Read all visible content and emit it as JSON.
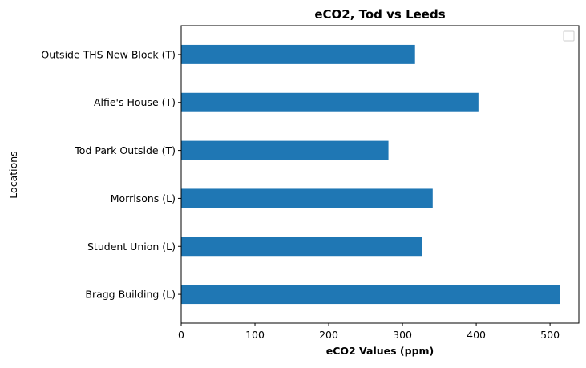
{
  "chart_data": {
    "type": "bar",
    "orientation": "horizontal",
    "title": "eCO2, Tod vs Leeds",
    "xlabel": "eCO2 Values (ppm)",
    "ylabel": "Locations",
    "categories": [
      "Bragg Building (L)",
      "Student Union (L)",
      "Morrisons (L)",
      "Tod Park Outside (T)",
      "Alfie's House (T)",
      "Outside THS New Block (T)"
    ],
    "values": [
      513,
      327,
      341,
      281,
      403,
      317
    ],
    "xlim": [
      0,
      539
    ],
    "xticks": [
      0,
      100,
      200,
      300,
      400,
      500
    ],
    "bar_color": "#1f77b4",
    "grid": false,
    "legend": {
      "placement": "top-right",
      "entries": []
    }
  }
}
